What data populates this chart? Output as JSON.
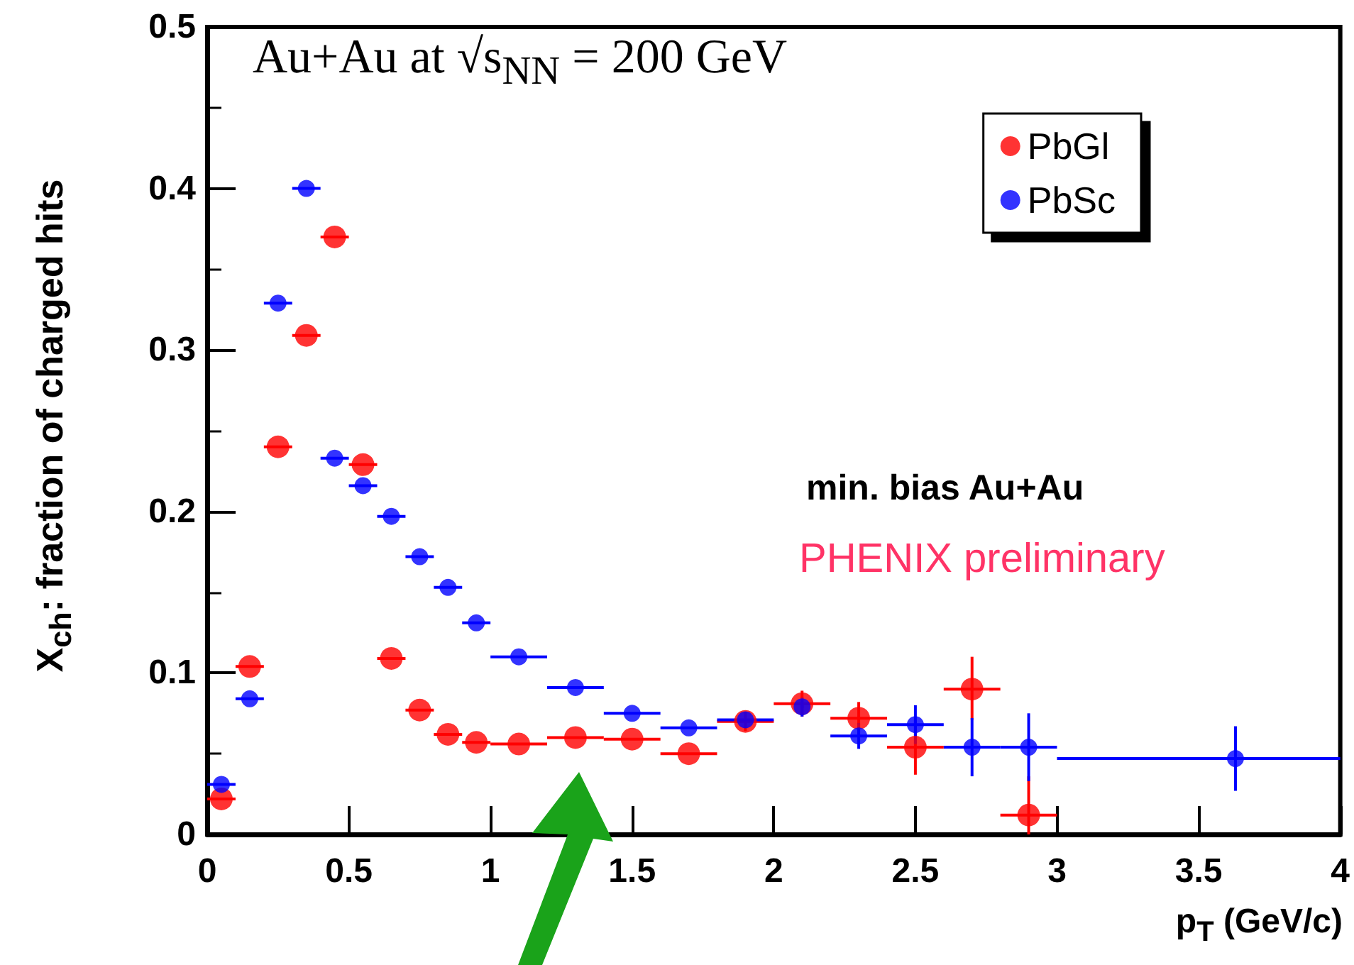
{
  "chart_data": {
    "type": "scatter",
    "xlabel": "p$_{T}$ (GeV/c)",
    "ylabel": "X$_{ch}$: fraction of charged hits",
    "annotations": [
      "Au+Au at √s$_{NN}$ = 200 GeV",
      "min. bias Au+Au",
      "PHENIX preliminary"
    ],
    "xlim": [
      0,
      4
    ],
    "xticks": [
      0,
      0.5,
      1,
      1.5,
      2,
      2.5,
      3,
      3.5,
      4
    ],
    "ylim": [
      0,
      0.5
    ],
    "yticks": [
      0,
      0.1,
      0.2,
      0.3,
      0.4,
      0.5
    ],
    "grid": false,
    "legend": "top right",
    "marker": "circle",
    "series": [
      {
        "name": "PbGl",
        "color": "#ff0000",
        "x": [
          0.05,
          0.15,
          0.25,
          0.35,
          0.45,
          0.55,
          0.65,
          0.75,
          0.85,
          0.95,
          1.1,
          1.3,
          1.5,
          1.7,
          1.9,
          2.1,
          2.3,
          2.5,
          2.7,
          2.9
        ],
        "values": [
          0.022,
          0.104,
          0.24,
          0.309,
          0.37,
          0.229,
          0.109,
          0.077,
          0.062,
          0.057,
          0.056,
          0.06,
          0.059,
          0.05,
          0.07,
          0.081,
          0.072,
          0.054,
          0.09,
          0.012
        ],
        "xerrors": [
          0.05,
          0.05,
          0.05,
          0.05,
          0.05,
          0.05,
          0.05,
          0.05,
          0.05,
          0.05,
          0.1,
          0.1,
          0.1,
          0.1,
          0.1,
          0.1,
          0.1,
          0.1,
          0.1,
          0.1
        ],
        "errors": [
          null,
          null,
          null,
          null,
          null,
          null,
          null,
          null,
          null,
          null,
          null,
          null,
          null,
          null,
          0.006,
          0.008,
          0.01,
          0.017,
          [
            0.071,
            0.11
          ],
          [
            0,
            0.036
          ]
        ]
      },
      {
        "name": "PbSc",
        "color": "#0000ff",
        "x": [
          0.05,
          0.15,
          0.25,
          0.35,
          0.45,
          0.55,
          0.65,
          0.75,
          0.85,
          0.95,
          1.1,
          1.3,
          1.5,
          1.7,
          1.9,
          2.1,
          2.3,
          2.5,
          2.7,
          2.9,
          3.63
        ],
        "values": [
          0.031,
          0.084,
          0.329,
          0.4,
          0.233,
          0.216,
          0.197,
          0.172,
          0.153,
          0.131,
          0.11,
          0.091,
          0.075,
          0.066,
          0.071,
          0.079,
          0.061,
          0.068,
          0.054,
          0.054,
          0.047
        ],
        "xerrors": [
          0.05,
          0.05,
          0.05,
          0.05,
          0.05,
          0.05,
          0.05,
          0.05,
          0.05,
          0.05,
          0.1,
          0.1,
          0.1,
          0.1,
          0.1,
          0.006,
          0.1,
          0.1,
          0.1,
          0.1,
          [
            3,
            4
          ]
        ],
        "errors": [
          null,
          null,
          null,
          null,
          null,
          null,
          null,
          null,
          null,
          null,
          null,
          null,
          null,
          null,
          null,
          0.006,
          0.008,
          0.012,
          0.018,
          0.021,
          0.02
        ]
      }
    ]
  }
}
